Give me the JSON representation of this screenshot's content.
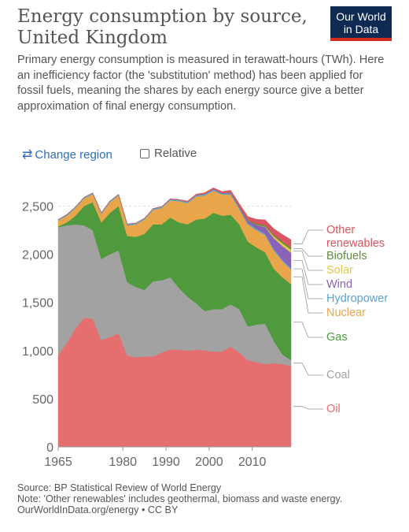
{
  "title": "Energy consumption by source, United Kingdom",
  "subtitle": "Primary energy consumption is measured in terawatt-hours (TWh). Here an inefficiency factor (the 'substitution' method) has been applied for fossil fuels, meaning the shares by each energy source give a better approximation of final energy consumption.",
  "logo": {
    "line1": "Our World",
    "line2": "in Data"
  },
  "controls": {
    "change_region": "Change region",
    "relative": "Relative"
  },
  "footer": {
    "source": "Source: BP Statistical Review of World Energy",
    "note": "Note: 'Other renewables' includes geothermal, biomass and waste energy.",
    "credit": "OurWorldInData.org/energy • CC BY"
  },
  "colors": {
    "oil": "#e56e6e",
    "coal": "#a2a2a2",
    "gas": "#4f9a3d",
    "nuclear": "#e8a54a",
    "hydropower": "#5ba3d6",
    "wind": "#8a62b7",
    "solar": "#e1c94a",
    "biofuels": "#5e8f3c",
    "other": "#d8565f"
  },
  "chart_data": {
    "type": "area",
    "stacked": true,
    "x": [
      1965,
      1967,
      1969,
      1971,
      1973,
      1975,
      1977,
      1979,
      1981,
      1983,
      1985,
      1987,
      1989,
      1991,
      1993,
      1995,
      1997,
      1999,
      2001,
      2003,
      2005,
      2007,
      2009,
      2011,
      2013,
      2015,
      2017,
      2019
    ],
    "ylim": [
      0,
      2700
    ],
    "yticks": [
      0,
      500,
      1000,
      1500,
      2000,
      2500
    ],
    "yticklabels": [
      "0",
      "500",
      "1,000",
      "1,500",
      "2,000",
      "2,500"
    ],
    "xticks": [
      1965,
      1980,
      1990,
      2000,
      2010
    ],
    "series": [
      {
        "name": "Oil",
        "key": "oil",
        "values": [
          950,
          1080,
          1230,
          1340,
          1330,
          1110,
          1140,
          1180,
          950,
          930,
          940,
          940,
          980,
          1010,
          1010,
          1000,
          1010,
          1000,
          990,
          990,
          1040,
          980,
          900,
          880,
          860,
          870,
          860,
          840
        ]
      },
      {
        "name": "Coal",
        "key": "coal",
        "values": [
          1330,
          1220,
          1080,
          960,
          920,
          840,
          860,
          860,
          760,
          730,
          690,
          780,
          750,
          750,
          640,
          560,
          480,
          410,
          440,
          440,
          440,
          450,
          350,
          390,
          420,
          230,
          100,
          60
        ]
      },
      {
        "name": "Gas",
        "key": "gas",
        "values": [
          10,
          30,
          90,
          200,
          290,
          380,
          430,
          460,
          480,
          520,
          580,
          590,
          580,
          620,
          680,
          750,
          870,
          960,
          1000,
          970,
          930,
          880,
          880,
          800,
          740,
          750,
          800,
          790
        ]
      },
      {
        "name": "Nuclear",
        "key": "nuclear",
        "values": [
          60,
          70,
          80,
          80,
          85,
          90,
          110,
          110,
          110,
          130,
          150,
          150,
          170,
          180,
          220,
          220,
          240,
          240,
          230,
          220,
          210,
          160,
          180,
          180,
          180,
          190,
          170,
          150
        ]
      },
      {
        "name": "Hydropower",
        "key": "hydropower",
        "values": [
          10,
          12,
          12,
          12,
          12,
          12,
          13,
          12,
          13,
          13,
          13,
          13,
          13,
          13,
          12,
          13,
          12,
          14,
          12,
          10,
          13,
          13,
          13,
          14,
          13,
          17,
          15,
          16
        ]
      },
      {
        "name": "Wind",
        "key": "wind",
        "values": [
          0,
          0,
          0,
          0,
          0,
          0,
          0,
          0,
          0,
          0,
          0,
          0,
          0,
          0,
          0,
          1,
          2,
          3,
          4,
          5,
          10,
          15,
          25,
          40,
          70,
          110,
          140,
          160
        ]
      },
      {
        "name": "Solar",
        "key": "solar",
        "values": [
          0,
          0,
          0,
          0,
          0,
          0,
          0,
          0,
          0,
          0,
          0,
          0,
          0,
          0,
          0,
          0,
          0,
          0,
          0,
          0,
          0,
          0,
          0,
          1,
          5,
          20,
          30,
          32
        ]
      },
      {
        "name": "Biofuels",
        "key": "biofuels",
        "values": [
          0,
          0,
          0,
          0,
          0,
          0,
          0,
          0,
          0,
          0,
          0,
          0,
          0,
          0,
          0,
          0,
          0,
          0,
          0,
          0,
          1,
          3,
          8,
          12,
          14,
          13,
          15,
          18
        ]
      },
      {
        "name": "Other renewables",
        "key": "other",
        "values": [
          0,
          0,
          0,
          0,
          0,
          0,
          0,
          0,
          0,
          0,
          1,
          2,
          3,
          4,
          6,
          8,
          10,
          12,
          14,
          16,
          20,
          25,
          35,
          45,
          55,
          65,
          75,
          85
        ]
      }
    ],
    "legend_placement": "right",
    "legend_labels": [
      {
        "key": "other",
        "text": "Other renewables"
      },
      {
        "key": "biofuels",
        "text": "Biofuels"
      },
      {
        "key": "solar",
        "text": "Solar"
      },
      {
        "key": "wind",
        "text": "Wind"
      },
      {
        "key": "hydropower",
        "text": "Hydropower"
      },
      {
        "key": "nuclear",
        "text": "Nuclear"
      },
      {
        "key": "gas",
        "text": "Gas"
      },
      {
        "key": "coal",
        "text": "Coal"
      },
      {
        "key": "oil",
        "text": "Oil"
      }
    ]
  }
}
